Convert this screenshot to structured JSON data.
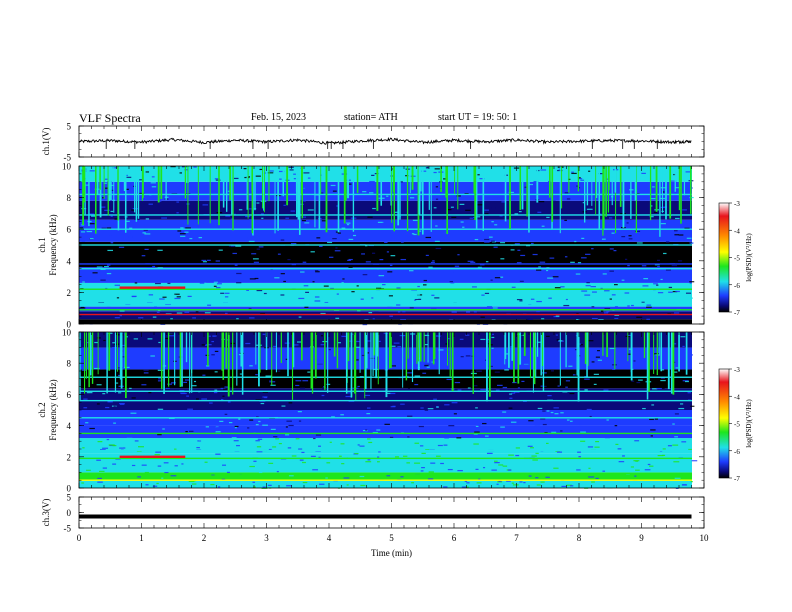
{
  "header": {
    "title": "VLF  Spectra",
    "date": "Feb. 15, 2023",
    "station": "station= ATH",
    "start_ut": "start  UT  =    19: 50: 1"
  },
  "colors": {
    "cb_top": "#ffffff",
    "cb_red": "#e8141c",
    "cb_orange": "#ff8a00",
    "cb_yellow": "#ffff00",
    "cb_green": "#1ee61e",
    "cb_cyan": "#20e0e8",
    "cb_blue": "#1e3cff",
    "cb_navy": "#0a0a7a",
    "cb_black": "#000000"
  },
  "chart_data": [
    {
      "type": "line",
      "ylabel": "ch.1(V)",
      "ylim": [
        -5,
        5
      ],
      "yticks": [
        "5",
        "-5"
      ],
      "x": [
        0,
        0.5,
        1,
        1.5,
        2,
        2.5,
        3,
        3.5,
        4,
        4.5,
        5,
        5.5,
        6,
        6.5,
        7,
        7.5,
        8,
        8.5,
        9,
        9.5,
        9.8
      ],
      "values": [
        0,
        0.3,
        -0.2,
        0.6,
        -0.3,
        0.4,
        -0.1,
        0.5,
        -0.6,
        0.2,
        0.7,
        -0.3,
        0.4,
        -0.1,
        0.5,
        -0.2,
        0.1,
        0.3,
        0.2,
        -0.2,
        0.1
      ]
    },
    {
      "type": "heatmap",
      "ylabel": "ch.1\nFrequency  (kHz)",
      "ylim": [
        0,
        10
      ],
      "yticks": [
        "0",
        "2",
        "4",
        "6",
        "8",
        "10"
      ],
      "colorbar": {
        "label": "log(PSD)(V²/Hz)",
        "ticks": [
          "-3",
          "-4",
          "-5",
          "-6",
          "-7"
        ],
        "range": [
          -7,
          -3
        ]
      }
    },
    {
      "type": "heatmap",
      "ylabel": "ch.2\nFrequency  (kHz)",
      "ylim": [
        0,
        10
      ],
      "yticks": [
        "0",
        "2",
        "4",
        "6",
        "8",
        "10"
      ],
      "colorbar": {
        "label": "log(PSD)(V²/Hz)",
        "ticks": [
          "-3",
          "-4",
          "-5",
          "-6",
          "-7"
        ],
        "range": [
          -7,
          -3
        ]
      }
    },
    {
      "type": "line",
      "ylabel": "ch.3(V)",
      "ylim": [
        -5,
        5
      ],
      "yticks": [
        "5",
        "0",
        "-5"
      ],
      "x": [
        0,
        9.8
      ],
      "values": [
        -1.3,
        -1.3
      ]
    }
  ],
  "xaxis": {
    "label": "Time  (min)",
    "ticks": [
      "0",
      "1",
      "2",
      "3",
      "4",
      "5",
      "6",
      "7",
      "8",
      "9",
      "10"
    ],
    "range": [
      0,
      10
    ]
  }
}
